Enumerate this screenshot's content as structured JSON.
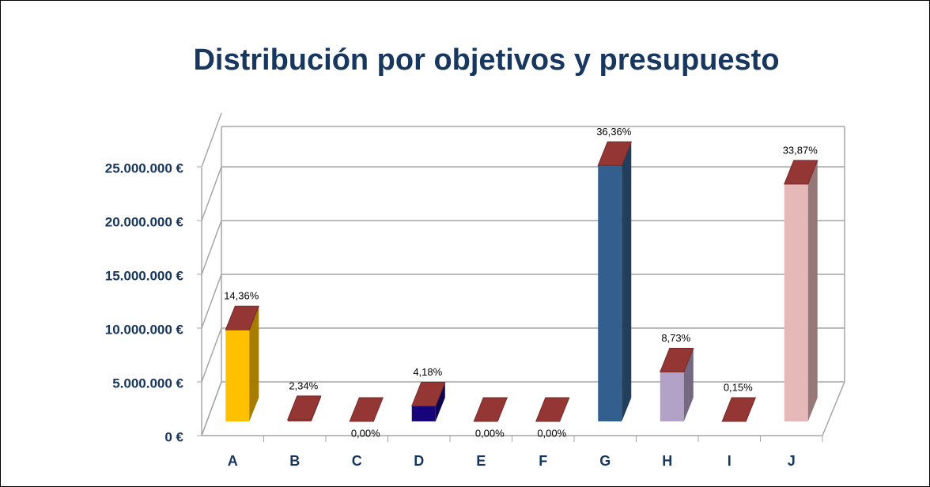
{
  "chart_data": {
    "type": "bar3d",
    "title": "Distribución por objetivos y presupuesto",
    "categories": [
      "A",
      "B",
      "C",
      "D",
      "E",
      "F",
      "G",
      "H",
      "I",
      "J"
    ],
    "values": [
      9980000,
      1630000,
      0,
      2900000,
      0,
      0,
      25270000,
      6070000,
      100000,
      23540000
    ],
    "shares": [
      {
        "value": 14.36,
        "label": "14,36%"
      },
      {
        "value": 2.34,
        "label": "2,34%"
      },
      {
        "value": 0,
        "label": "0,00%"
      },
      {
        "value": 4.18,
        "label": "4,18%"
      },
      {
        "value": 0,
        "label": "0,00%"
      },
      {
        "value": 0,
        "label": "0,00%"
      },
      {
        "value": 36.36,
        "label": "36,36%"
      },
      {
        "value": 8.73,
        "label": "8,73%"
      },
      {
        "value": 0.15,
        "label": "0,15%"
      },
      {
        "value": 33.87,
        "label": "33,87%"
      }
    ],
    "colors": [
      "#ffc000",
      "#943634",
      "#943634",
      "#17037a",
      "#943634",
      "#943634",
      "#335f8e",
      "#b3a2c7",
      "#ffc000",
      "#e6b9b8"
    ],
    "cap_color": "#943634",
    "ylim": [
      0,
      30000000
    ],
    "yticks": [
      {
        "value": 0,
        "label": "0 €"
      },
      {
        "value": 5000000,
        "label": "5.000.000 €"
      },
      {
        "value": 10000000,
        "label": "10.000.000 €"
      },
      {
        "value": 15000000,
        "label": "15.000.000 €"
      },
      {
        "value": 20000000,
        "label": "20.000.000 €"
      },
      {
        "value": 25000000,
        "label": "25.000.000 €"
      }
    ],
    "grid": true
  }
}
